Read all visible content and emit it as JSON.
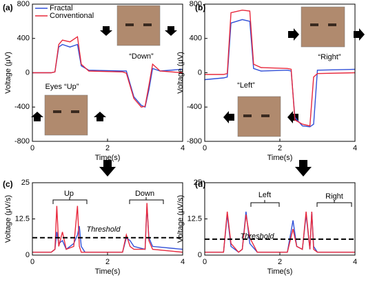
{
  "chart_data": [
    {
      "type": "line",
      "label": "(a)",
      "xlabel": "Time(s)",
      "ylabel": "Voltage (μV)",
      "xlim": [
        0,
        4
      ],
      "xticks": [
        0,
        2,
        4
      ],
      "ylim": [
        -800,
        800
      ],
      "yticks": [
        -800,
        -400,
        0,
        400,
        800
      ],
      "legend": "upper left",
      "annotations": [
        "Eyes “Up”",
        "“Down”"
      ],
      "x": [
        0,
        0.5,
        0.6,
        0.7,
        0.8,
        1.0,
        1.2,
        1.3,
        1.5,
        2.4,
        2.5,
        2.7,
        2.9,
        3.0,
        3.1,
        3.2,
        3.4,
        4
      ],
      "series": [
        {
          "name": "Fractal",
          "color": "#3050d8",
          "values": [
            0,
            0,
            10,
            300,
            330,
            300,
            330,
            80,
            30,
            20,
            20,
            -280,
            -380,
            -400,
            -200,
            50,
            20,
            40
          ]
        },
        {
          "name": "Conventional",
          "color": "#e8283c",
          "values": [
            0,
            0,
            10,
            330,
            380,
            360,
            420,
            100,
            20,
            10,
            -5,
            -300,
            -400,
            -390,
            -150,
            100,
            20,
            0
          ]
        }
      ]
    },
    {
      "type": "line",
      "label": "(b)",
      "xlabel": "Time(s)",
      "ylabel": "Voltage (μV)",
      "xlim": [
        0,
        4
      ],
      "xticks": [
        0,
        2,
        4
      ],
      "ylim": [
        -800,
        800
      ],
      "yticks": [
        -800,
        -400,
        0,
        400,
        800
      ],
      "annotations": [
        "“Right”",
        "“Left”"
      ],
      "x": [
        0,
        0.5,
        0.6,
        0.7,
        1.0,
        1.2,
        1.3,
        1.5,
        2.2,
        2.3,
        2.4,
        2.6,
        2.8,
        2.9,
        3.0,
        4
      ],
      "series": [
        {
          "color": "#3050d8",
          "values": [
            -80,
            -60,
            -50,
            580,
            620,
            600,
            50,
            20,
            30,
            20,
            -520,
            -620,
            -630,
            -600,
            30,
            40
          ]
        },
        {
          "color": "#e8283c",
          "values": [
            -20,
            -20,
            -10,
            700,
            730,
            720,
            100,
            60,
            50,
            40,
            -550,
            -600,
            -620,
            -50,
            -10,
            0
          ]
        }
      ]
    },
    {
      "type": "line",
      "label": "(c)",
      "xlabel": "Time(s)",
      "ylabel": "Voltage (μV/s)",
      "xlim": [
        0,
        4
      ],
      "xticks": [
        0,
        2,
        4
      ],
      "ylim": [
        0,
        25
      ],
      "yticks": [
        0,
        12.5,
        25
      ],
      "threshold": 6,
      "annotations": [
        "Up",
        "Down",
        "Threshold"
      ],
      "x": [
        0,
        0.5,
        0.6,
        0.65,
        0.7,
        0.8,
        0.9,
        1.1,
        1.2,
        1.25,
        1.3,
        1.4,
        1.5,
        2.4,
        2.5,
        2.6,
        2.7,
        3.0,
        3.05,
        3.1,
        3.2,
        4
      ],
      "series": [
        {
          "color": "#3050d8",
          "values": [
            1,
            1,
            2,
            8,
            4,
            5,
            2,
            4,
            7,
            10,
            3,
            1,
            1,
            1,
            6,
            5,
            3,
            2,
            17,
            6,
            3,
            2
          ]
        },
        {
          "color": "#e8283c",
          "values": [
            1,
            1,
            2,
            17,
            3,
            8,
            2,
            3,
            17,
            3,
            1,
            1,
            1,
            1,
            7,
            3,
            2,
            2,
            18,
            5,
            2,
            1
          ]
        }
      ]
    },
    {
      "type": "line",
      "label": "(d)",
      "xlabel": "Time(s)",
      "ylabel": "Voltage (μV/s)",
      "xlim": [
        0,
        4
      ],
      "xticks": [
        0,
        2,
        4
      ],
      "ylim": [
        0,
        25
      ],
      "yticks": [
        0,
        12.5,
        25
      ],
      "threshold": 5.5,
      "annotations": [
        "Left",
        "Right",
        "Threshold"
      ],
      "x": [
        0,
        0.5,
        0.6,
        0.7,
        0.9,
        1.0,
        1.1,
        1.2,
        1.4,
        2.2,
        2.35,
        2.45,
        2.6,
        2.7,
        2.8,
        2.85,
        2.9,
        3.0,
        4
      ],
      "series": [
        {
          "color": "#3050d8",
          "values": [
            1,
            1,
            14,
            3,
            1,
            2,
            15,
            4,
            1,
            1,
            12,
            3,
            2,
            14,
            2,
            15,
            3,
            1,
            1
          ]
        },
        {
          "color": "#e8283c",
          "values": [
            1,
            1,
            15,
            4,
            1,
            2,
            14,
            6,
            1,
            1,
            9,
            3,
            2,
            15,
            2,
            15,
            2,
            1,
            1
          ]
        }
      ]
    }
  ]
}
